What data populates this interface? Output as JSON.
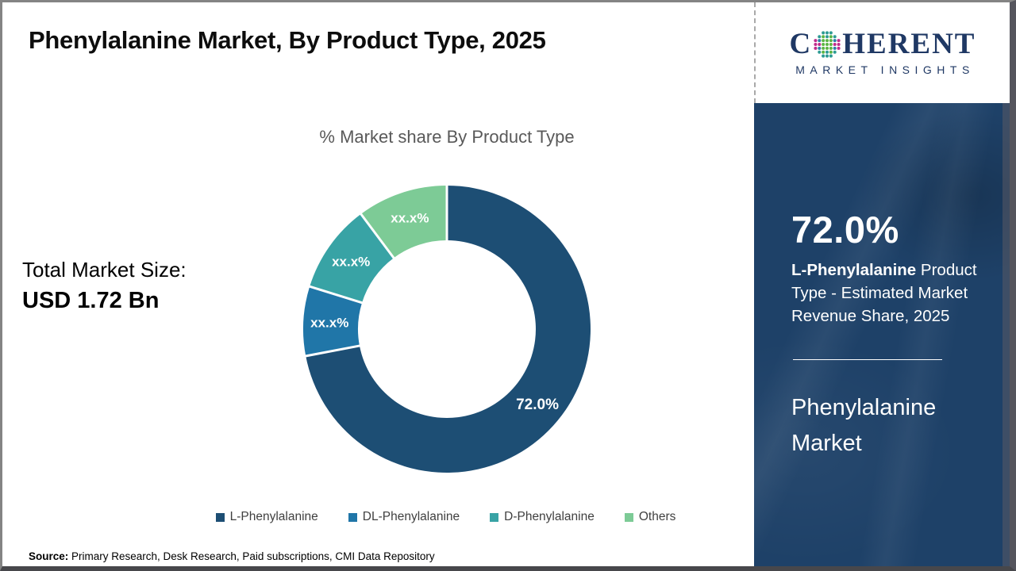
{
  "page": {
    "title": "Phenylalanine Market, By Product Type, 2025",
    "source_label": "Source:",
    "source_text": " Primary Research, Desk Research, Paid subscriptions, CMI Data Repository"
  },
  "total_market": {
    "label": "Total Market Size:",
    "value": "USD 1.72 Bn"
  },
  "chart_data": {
    "type": "pie",
    "subtype": "donut",
    "title": "% Market share By Product Type",
    "categories": [
      "L-Phenylalanine",
      "DL-Phenylalanine",
      "D-Phenylalanine",
      "Others"
    ],
    "values": [
      72.0,
      7.8,
      10.0,
      10.2
    ],
    "display_labels": [
      "72.0%",
      "xx.x%",
      "xx.x%",
      "xx.x%"
    ],
    "colors": [
      "#1d4e74",
      "#2076a8",
      "#38a3a5",
      "#7dcb96"
    ],
    "start_angle_deg": 0,
    "direction": "clockwise",
    "legend_position": "bottom",
    "label_color": "#ffffff"
  },
  "legend": {
    "items": [
      {
        "label": "L-Phenylalanine",
        "color": "#1d4e74"
      },
      {
        "label": "DL-Phenylalanine",
        "color": "#2076a8"
      },
      {
        "label": "D-Phenylalanine",
        "color": "#38a3a5"
      },
      {
        "label": "Others",
        "color": "#7dcb96"
      }
    ]
  },
  "sidebar": {
    "logo": {
      "word_start": "C",
      "word_end": "HERENT",
      "subtitle": "MARKET INSIGHTS",
      "icon": "dotted-globe-icon",
      "text_color": "#1f3864",
      "dot_colors": {
        "magenta": "#c02c8c",
        "teal": "#2d9b94",
        "green": "#5cb544",
        "blue": "#2e7fa8"
      }
    },
    "stat_value": "72.0%",
    "stat_desc_bold": "L-Phenylalanine",
    "stat_desc_rest": " Product Type - Estimated Market Revenue Share, 2025",
    "panel_title": "Phenylalanine Market",
    "panel_bg": "#1e4168"
  }
}
